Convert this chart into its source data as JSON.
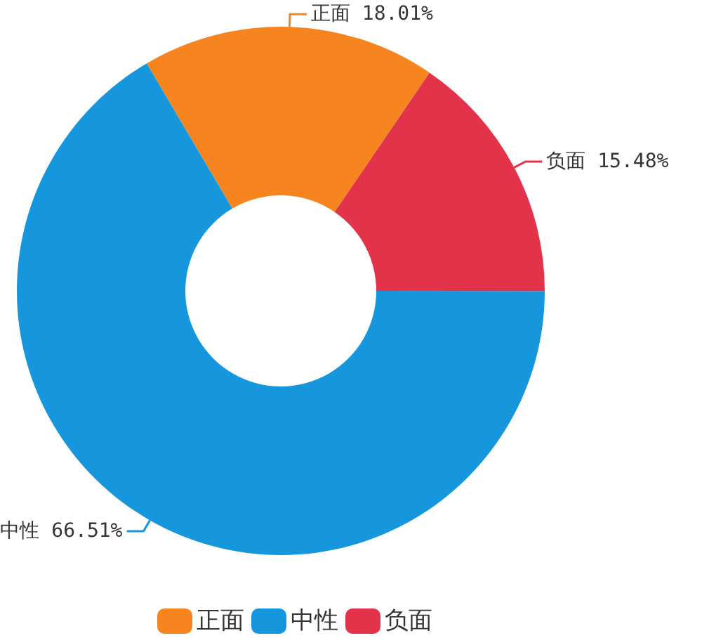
{
  "chart_data": {
    "type": "donut",
    "categories": [
      "正面",
      "中性",
      "负面"
    ],
    "values": [
      18.01,
      66.51,
      15.48
    ],
    "value_labels": [
      "18.01%",
      "66.51%",
      "15.48%"
    ],
    "colors": [
      "#f7851f",
      "#1696dc",
      "#e3334b"
    ],
    "legend": "bottom"
  }
}
